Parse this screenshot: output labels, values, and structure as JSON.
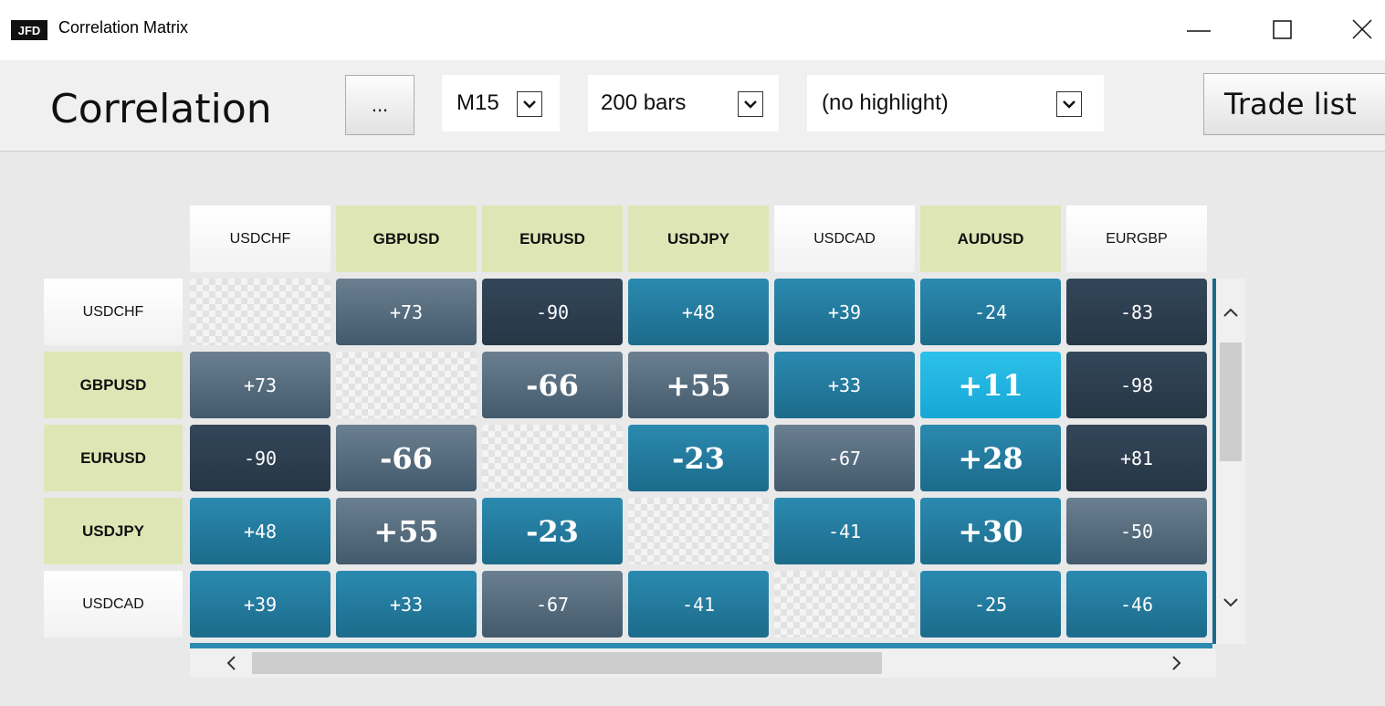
{
  "window": {
    "icon": "JFD",
    "title": "Correlation Matrix"
  },
  "toolbar": {
    "heading": "Correlation",
    "options_button": "...",
    "timeframe": "M15",
    "bars": "200 bars",
    "highlight": "(no highlight)",
    "trade_list_button": "Trade list"
  },
  "matrix": {
    "columns": [
      {
        "label": "USDCHF",
        "highlighted": false
      },
      {
        "label": "GBPUSD",
        "highlighted": true
      },
      {
        "label": "EURUSD",
        "highlighted": true
      },
      {
        "label": "USDJPY",
        "highlighted": true
      },
      {
        "label": "USDCAD",
        "highlighted": false
      },
      {
        "label": "AUDUSD",
        "highlighted": true
      },
      {
        "label": "EURGBP",
        "highlighted": false
      }
    ],
    "rows": [
      {
        "label": "USDCHF",
        "highlighted": false,
        "cells": [
          null,
          {
            "text": "+73",
            "tone": "slate"
          },
          {
            "text": "-90",
            "tone": "dark"
          },
          {
            "text": "+48",
            "tone": "teal"
          },
          {
            "text": "+39",
            "tone": "teal"
          },
          {
            "text": "-24",
            "tone": "teal"
          },
          {
            "text": "-83",
            "tone": "dark"
          }
        ]
      },
      {
        "label": "GBPUSD",
        "highlighted": true,
        "cells": [
          {
            "text": "+73",
            "tone": "slate"
          },
          null,
          {
            "text": "-66",
            "tone": "slate",
            "bold": true
          },
          {
            "text": "+55",
            "tone": "slate",
            "bold": true
          },
          {
            "text": "+33",
            "tone": "teal"
          },
          {
            "text": "+11",
            "tone": "cyan",
            "bold": true
          },
          {
            "text": "-98",
            "tone": "dark"
          }
        ]
      },
      {
        "label": "EURUSD",
        "highlighted": true,
        "cells": [
          {
            "text": "-90",
            "tone": "dark"
          },
          {
            "text": "-66",
            "tone": "slate",
            "bold": true
          },
          null,
          {
            "text": "-23",
            "tone": "teal",
            "bold": true
          },
          {
            "text": "-67",
            "tone": "slate"
          },
          {
            "text": "+28",
            "tone": "teal",
            "bold": true
          },
          {
            "text": "+81",
            "tone": "dark"
          }
        ]
      },
      {
        "label": "USDJPY",
        "highlighted": true,
        "cells": [
          {
            "text": "+48",
            "tone": "teal"
          },
          {
            "text": "+55",
            "tone": "slate",
            "bold": true
          },
          {
            "text": "-23",
            "tone": "teal",
            "bold": true
          },
          null,
          {
            "text": "-41",
            "tone": "teal"
          },
          {
            "text": "+30",
            "tone": "teal",
            "bold": true
          },
          {
            "text": "-50",
            "tone": "slate"
          }
        ]
      },
      {
        "label": "USDCAD",
        "highlighted": false,
        "cells": [
          {
            "text": "+39",
            "tone": "teal"
          },
          {
            "text": "+33",
            "tone": "teal"
          },
          {
            "text": "-67",
            "tone": "slate"
          },
          {
            "text": "-41",
            "tone": "teal"
          },
          null,
          {
            "text": "-25",
            "tone": "teal"
          },
          {
            "text": "-46",
            "tone": "teal"
          }
        ]
      }
    ]
  }
}
